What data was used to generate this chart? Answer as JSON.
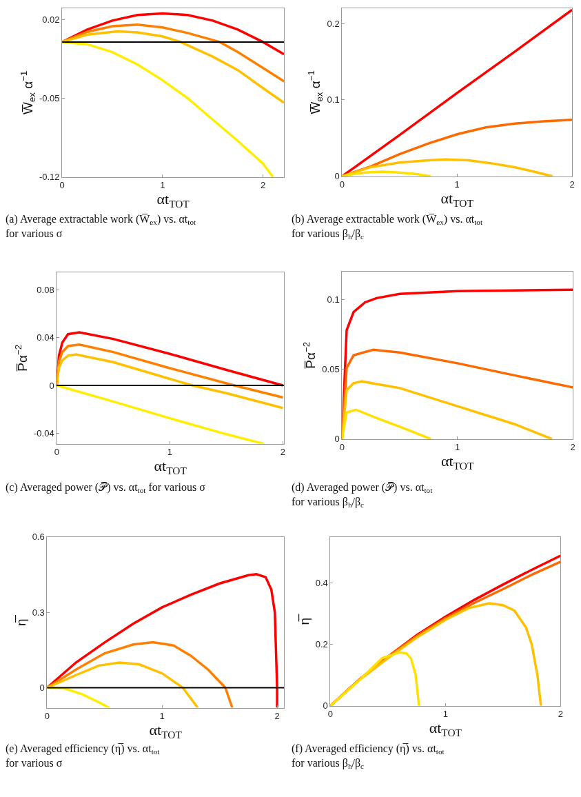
{
  "chart_data": [
    {
      "type": "line",
      "title": "(a) Average extractable work (W̅$_{ex}$) vs. αt$_{tot}$ for various σ",
      "xlabel": "αt$_{TOT}$",
      "ylabel": "W̅$_{ex}$ α$^{−1}$",
      "xlim": [
        0,
        2.21
      ],
      "xticks": [
        0,
        1,
        2
      ],
      "ylim": [
        -0.12,
        0.03
      ],
      "yticks": [
        -0.12,
        -0.05,
        0.02
      ],
      "marker": "none",
      "line_style": "solid",
      "ref_lines": [
        {
          "axis": "y",
          "value": 0,
          "color": "#000000"
        }
      ],
      "series": [
        {
          "color": "#ff0000",
          "x": [
            0,
            0.25,
            0.5,
            0.75,
            1,
            1.25,
            1.5,
            1.75,
            2,
            2.21
          ],
          "values": [
            0,
            0.011,
            0.019,
            0.024,
            0.0254,
            0.024,
            0.019,
            0.011,
            0.0,
            -0.011
          ]
        },
        {
          "color": "#ff8000",
          "x": [
            0,
            0.25,
            0.5,
            0.75,
            1,
            1.25,
            1.57,
            1.75,
            2,
            2.21
          ],
          "values": [
            0,
            0.009,
            0.014,
            0.0154,
            0.013,
            0.008,
            0,
            -0.009,
            -0.023,
            -0.035
          ]
        },
        {
          "color": "#ffc000",
          "x": [
            0,
            0.25,
            0.55,
            0.75,
            1,
            1.18,
            1.5,
            1.75,
            2,
            2.21
          ],
          "values": [
            0,
            0.0065,
            0.0094,
            0.0085,
            0.005,
            0,
            -0.013,
            -0.025,
            -0.041,
            -0.054
          ]
        },
        {
          "color": "#ffee00",
          "x": [
            0,
            0.25,
            0.5,
            0.75,
            1,
            1.25,
            1.5,
            1.75,
            2,
            2.1
          ],
          "values": [
            0,
            -0.002,
            -0.009,
            -0.02,
            -0.034,
            -0.05,
            -0.069,
            -0.088,
            -0.108,
            -0.12
          ]
        }
      ]
    },
    {
      "type": "line",
      "title": "(b) Average extractable work (W̅$_{ex}$) vs. αt$_{tot}$ for various β$_{h}$/β$_{c}$",
      "xlabel": "αt$_{TOT}$",
      "ylabel": "W̅$_{ex}$ α$^{−1}$",
      "xlim": [
        0,
        2
      ],
      "xticks": [
        0,
        1,
        2
      ],
      "ylim": [
        0,
        0.22
      ],
      "yticks": [
        0,
        0.1,
        0.2
      ],
      "marker": "none",
      "line_style": "solid",
      "series": [
        {
          "color": "#ff0000",
          "x": [
            0,
            0.5,
            1,
            1.5,
            2
          ],
          "values": [
            0,
            0.054,
            0.109,
            0.163,
            0.218
          ]
        },
        {
          "color": "#ff6a00",
          "x": [
            0,
            0.25,
            0.5,
            0.75,
            1,
            1.25,
            1.5,
            1.75,
            2
          ],
          "values": [
            0,
            0.013,
            0.029,
            0.043,
            0.055,
            0.064,
            0.069,
            0.072,
            0.074
          ]
        },
        {
          "color": "#ffc000",
          "x": [
            0,
            0.25,
            0.5,
            0.75,
            0.9,
            1.1,
            1.3,
            1.5,
            1.7,
            1.83
          ],
          "values": [
            0,
            0.012,
            0.018,
            0.021,
            0.022,
            0.021,
            0.017,
            0.012,
            0.005,
            0
          ]
        },
        {
          "color": "#ffe000",
          "x": [
            0,
            0.1,
            0.2,
            0.35,
            0.5,
            0.65,
            0.77
          ],
          "values": [
            0,
            0.003,
            0.005,
            0.006,
            0.005,
            0.003,
            0
          ]
        }
      ]
    },
    {
      "type": "line",
      "title": "(c) Averaged power (𝒫̅) vs. αt$_{tot}$ for various σ",
      "xlabel": "αt$_{TOT}$",
      "ylabel": "P̅α$^{−2}$",
      "xlim": [
        0,
        2.01
      ],
      "xticks": [
        0,
        1,
        2
      ],
      "ylim": [
        -0.049,
        0.095
      ],
      "yticks": [
        -0.04,
        0,
        0.04,
        0.08
      ],
      "marker": "none",
      "line_style": "solid",
      "ref_lines": [
        {
          "axis": "y",
          "value": 0,
          "color": "#000000"
        }
      ],
      "series": [
        {
          "color": "#ff0000",
          "x": [
            0,
            0.02,
            0.05,
            0.1,
            0.2,
            0.5,
            1,
            1.5,
            2
          ],
          "values": [
            0,
            0.025,
            0.036,
            0.043,
            0.0445,
            0.039,
            0.0265,
            0.013,
            0
          ]
        },
        {
          "color": "#ff8000",
          "x": [
            0,
            0.02,
            0.05,
            0.1,
            0.2,
            0.5,
            1,
            1.57,
            2
          ],
          "values": [
            0,
            0.02,
            0.028,
            0.033,
            0.0343,
            0.028,
            0.0145,
            0,
            -0.0101
          ]
        },
        {
          "color": "#ffc000",
          "x": [
            0,
            0.02,
            0.05,
            0.1,
            0.17,
            0.5,
            1,
            1.2,
            1.5,
            2
          ],
          "values": [
            0,
            0.015,
            0.021,
            0.025,
            0.026,
            0.0195,
            0.0055,
            0,
            -0.0065,
            -0.019
          ]
        },
        {
          "color": "#ffee00",
          "x": [
            0,
            0.5,
            1,
            1.5,
            1.83
          ],
          "values": [
            0,
            -0.0135,
            -0.0276,
            -0.041,
            -0.049
          ]
        }
      ]
    },
    {
      "type": "line",
      "title": "(d) Averaged power (𝒫̅) vs. αt$_{tot}$ for various β$_{h}$/β$_{c}$",
      "xlabel": "αt$_{TOT}$",
      "ylabel": "P̅α$^{−2}$",
      "xlim": [
        0,
        2
      ],
      "xticks": [
        0,
        1,
        2
      ],
      "ylim": [
        0,
        0.12
      ],
      "yticks": [
        0,
        0.05,
        0.1
      ],
      "marker": "none",
      "line_style": "solid",
      "series": [
        {
          "color": "#ff0000",
          "x": [
            0,
            0.04,
            0.1,
            0.2,
            0.3,
            0.5,
            1,
            1.5,
            2
          ],
          "values": [
            0,
            0.078,
            0.091,
            0.098,
            0.101,
            0.104,
            0.106,
            0.1065,
            0.107
          ]
        },
        {
          "color": "#ff6a00",
          "x": [
            0,
            0.04,
            0.1,
            0.27,
            0.5,
            1,
            1.5,
            2
          ],
          "values": [
            0,
            0.051,
            0.06,
            0.064,
            0.062,
            0.0543,
            0.0455,
            0.037
          ]
        },
        {
          "color": "#ffc000",
          "x": [
            0,
            0.04,
            0.1,
            0.17,
            0.5,
            1,
            1.5,
            1.82
          ],
          "values": [
            0,
            0.035,
            0.04,
            0.0413,
            0.0365,
            0.0235,
            0.0105,
            0
          ]
        },
        {
          "color": "#ffe000",
          "x": [
            0,
            0.04,
            0.12,
            0.3,
            0.5,
            0.77
          ],
          "values": [
            0,
            0.019,
            0.021,
            0.015,
            0.0088,
            0
          ]
        }
      ]
    },
    {
      "type": "line",
      "title": "(e) Averaged efficiency (η̅) vs. αt$_{tot}$ for various σ",
      "xlabel": "αt$_{TOT}$",
      "ylabel": "η̅",
      "xlim": [
        0,
        2.06
      ],
      "xticks": [
        0,
        1,
        2
      ],
      "ylim": [
        -0.08,
        0.6
      ],
      "yticks": [
        0,
        0.3,
        0.6
      ],
      "marker": "none",
      "line_style": "solid",
      "ref_lines": [
        {
          "axis": "y",
          "value": 0,
          "color": "#000000"
        }
      ],
      "series": [
        {
          "color": "#ff0000",
          "x": [
            0,
            0.25,
            0.5,
            0.75,
            1,
            1.25,
            1.5,
            1.75,
            1.82,
            1.9,
            1.95,
            1.98,
            1.99,
            2,
            2
          ],
          "values": [
            0,
            0.1,
            0.18,
            0.255,
            0.32,
            0.37,
            0.415,
            0.448,
            0.452,
            0.44,
            0.39,
            0.3,
            0.15,
            0,
            -0.08
          ]
        },
        {
          "color": "#ff8000",
          "x": [
            0,
            0.25,
            0.5,
            0.75,
            0.92,
            1.1,
            1.25,
            1.4,
            1.55,
            1.61
          ],
          "values": [
            0,
            0.072,
            0.137,
            0.172,
            0.181,
            0.168,
            0.127,
            0.072,
            0,
            -0.08
          ]
        },
        {
          "color": "#ffc000",
          "x": [
            0,
            0.25,
            0.45,
            0.63,
            0.8,
            1,
            1.18,
            1.31
          ],
          "values": [
            0,
            0.05,
            0.088,
            0.1,
            0.093,
            0.057,
            0,
            -0.08
          ]
        },
        {
          "color": "#ffee00",
          "x": [
            0,
            0.15,
            0.3,
            0.45,
            0.54
          ],
          "values": [
            0,
            -0.003,
            -0.025,
            -0.058,
            -0.08
          ]
        }
      ]
    },
    {
      "type": "line",
      "title": "(f) Averaged efficiency (η̅) vs. αt$_{tot}$ for various β$_{h}$/β$_{c}$",
      "xlabel": "αt$_{TOT}$",
      "ylabel": "η̅",
      "xlim": [
        0,
        2
      ],
      "xticks": [
        0,
        1,
        2
      ],
      "ylim": [
        0,
        0.55
      ],
      "yticks": [
        0,
        0.2,
        0.4
      ],
      "marker": "none",
      "line_style": "solid",
      "series": [
        {
          "color": "#ff0000",
          "x": [
            0,
            0.25,
            0.5,
            0.75,
            1,
            1.25,
            1.5,
            1.75,
            2
          ],
          "values": [
            0,
            0.085,
            0.16,
            0.23,
            0.29,
            0.345,
            0.395,
            0.443,
            0.489
          ]
        },
        {
          "color": "#ff6a00",
          "x": [
            0,
            0.25,
            0.5,
            0.75,
            1,
            1.25,
            1.5,
            1.75,
            2
          ],
          "values": [
            0,
            0.085,
            0.16,
            0.227,
            0.285,
            0.335,
            0.38,
            0.427,
            0.469
          ]
        },
        {
          "color": "#ffc000",
          "x": [
            0,
            0.25,
            0.5,
            0.75,
            1,
            1.2,
            1.38,
            1.5,
            1.6,
            1.7,
            1.75,
            1.8,
            1.83
          ],
          "values": [
            0,
            0.083,
            0.155,
            0.222,
            0.28,
            0.318,
            0.334,
            0.328,
            0.31,
            0.255,
            0.2,
            0.098,
            0
          ]
        },
        {
          "color": "#ffe000",
          "x": [
            0,
            0.25,
            0.45,
            0.6,
            0.66,
            0.7,
            0.74,
            0.77
          ],
          "values": [
            0,
            0.083,
            0.155,
            0.174,
            0.171,
            0.154,
            0.102,
            0
          ]
        }
      ]
    }
  ]
}
